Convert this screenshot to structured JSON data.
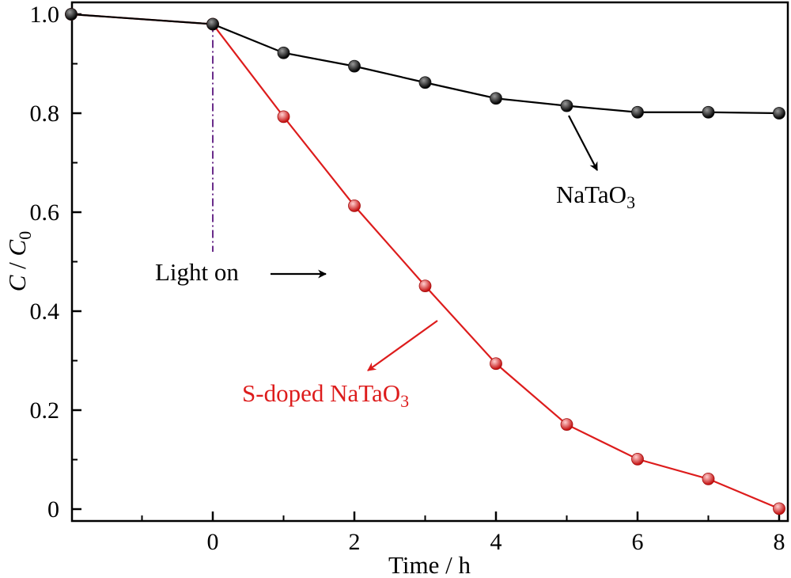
{
  "chart_data": {
    "type": "line",
    "xlabel": "Time / h",
    "ylabel_main": "C",
    "ylabel_sep": " / ",
    "ylabel_sub_main": "C",
    "ylabel_sub": "0",
    "xlim": [
      -2,
      8
    ],
    "ylim": [
      0,
      1.0
    ],
    "x_ticks": [
      0,
      2,
      4,
      6,
      8
    ],
    "y_ticks": [
      {
        "value": 0,
        "label": "0"
      },
      {
        "value": 0.2,
        "label": "0.2"
      },
      {
        "value": 0.4,
        "label": "0.4"
      },
      {
        "value": 0.6,
        "label": "0.6"
      },
      {
        "value": 0.8,
        "label": "0.8"
      },
      {
        "value": 1.0,
        "label": "1.0"
      }
    ],
    "grid": false,
    "light_on_x": 0,
    "series": [
      {
        "name": "NaTaO3",
        "color": "#000000",
        "x": [
          -2,
          0,
          1,
          2,
          3,
          4,
          5,
          6,
          7,
          8
        ],
        "y": [
          1.0,
          0.98,
          0.922,
          0.895,
          0.862,
          0.83,
          0.815,
          0.802,
          0.802,
          0.8
        ]
      },
      {
        "name": "S-doped NaTaO3",
        "color": "#dd1c1c",
        "x": [
          -2,
          0,
          1,
          2,
          3,
          4,
          5,
          6,
          7,
          8
        ],
        "y": [
          1.0,
          0.98,
          0.793,
          0.613,
          0.451,
          0.294,
          0.171,
          0.101,
          0.061,
          0.001
        ]
      }
    ],
    "annotations": {
      "light_on": {
        "text": "Light on",
        "color": "#000000"
      },
      "natao3": {
        "main": "NaTaO",
        "sub": "3",
        "color": "#000000"
      },
      "sdoped": {
        "main": "S-doped NaTaO",
        "sub": "3",
        "color": "#dd1c1c"
      }
    },
    "marker_colors": {
      "black_light": "#9a9a9a",
      "black_dark": "#000000",
      "red_light": "#ffd0d0",
      "red_dark": "#c41010"
    }
  }
}
